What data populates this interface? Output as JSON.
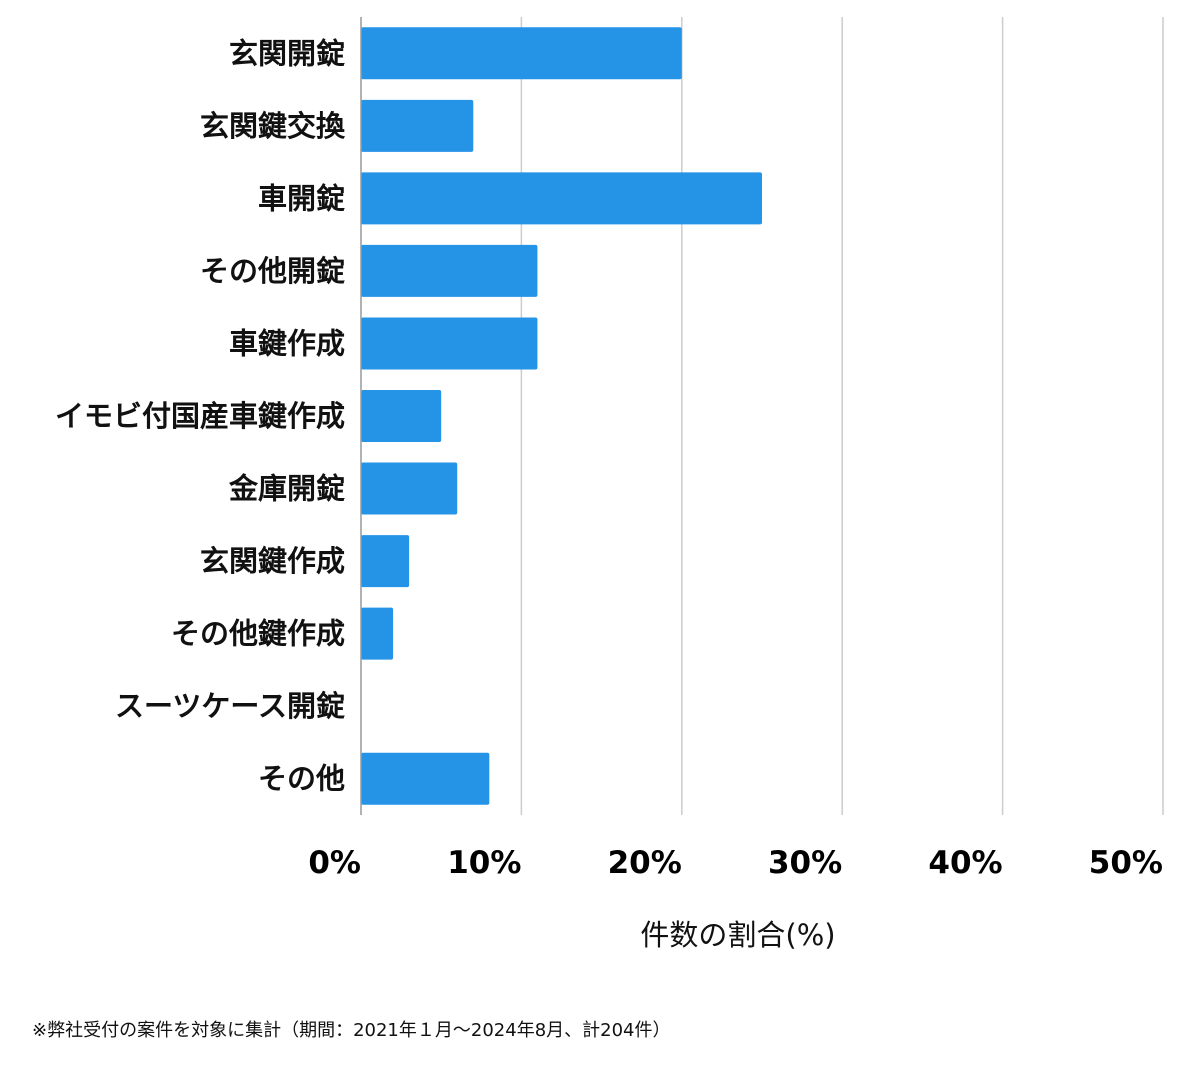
{
  "chart_data": {
    "type": "bar",
    "orientation": "horizontal",
    "categories": [
      "玄関開錠",
      "玄関鍵交換",
      "車開錠",
      "その他開錠",
      "車鍵作成",
      "イモビ付国産車鍵作成",
      "金庫開錠",
      "玄関鍵作成",
      "その他鍵作成",
      "スーツケース開錠",
      "その他"
    ],
    "values": [
      20,
      7,
      25,
      11,
      11,
      5,
      6,
      3,
      2,
      0,
      8
    ],
    "xlim": [
      0,
      50
    ],
    "xticks": [
      0,
      10,
      20,
      30,
      40,
      50
    ],
    "xtick_labels": [
      "0%",
      "10%",
      "20%",
      "30%",
      "40%",
      "50%"
    ],
    "xlabel": "件数の割合(%)",
    "ylabel": "",
    "title": "",
    "grid": "vertical",
    "bar_color": "#2593e6",
    "grid_color": "#cccccc"
  },
  "footnote": "※弊社受付の案件を対象に集計（期間：2021年１月〜2024年8月、計204件）"
}
